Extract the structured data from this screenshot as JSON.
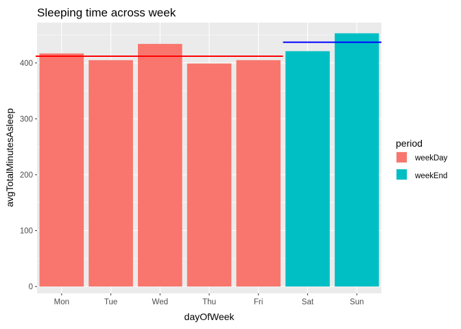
{
  "chart_data": {
    "type": "bar",
    "title": "Sleeping time across week",
    "xlabel": "dayOfWeek",
    "ylabel": "avgTotalMinutesAsleep",
    "categories": [
      "Mon",
      "Tue",
      "Wed",
      "Thu",
      "Fri",
      "Sat",
      "Sun"
    ],
    "values": [
      417,
      405,
      434,
      399,
      405,
      421,
      453
    ],
    "groups": [
      "weekDay",
      "weekDay",
      "weekDay",
      "weekDay",
      "weekDay",
      "weekEnd",
      "weekEnd"
    ],
    "ylim": [
      0,
      475
    ],
    "yticks": [
      0,
      100,
      200,
      300,
      400
    ],
    "grid": true,
    "legend": {
      "title": "period",
      "position": "right",
      "items": [
        {
          "label": "weekDay",
          "color": "#F8766D"
        },
        {
          "label": "weekEnd",
          "color": "#00BFC4"
        }
      ]
    },
    "mean_lines": [
      {
        "group": "weekDay",
        "value": 412,
        "from": "Mon",
        "to": "Fri",
        "color": "#FF0000"
      },
      {
        "group": "weekEnd",
        "value": 437,
        "from": "Sat",
        "to": "Sun",
        "color": "#0000FF"
      }
    ]
  }
}
